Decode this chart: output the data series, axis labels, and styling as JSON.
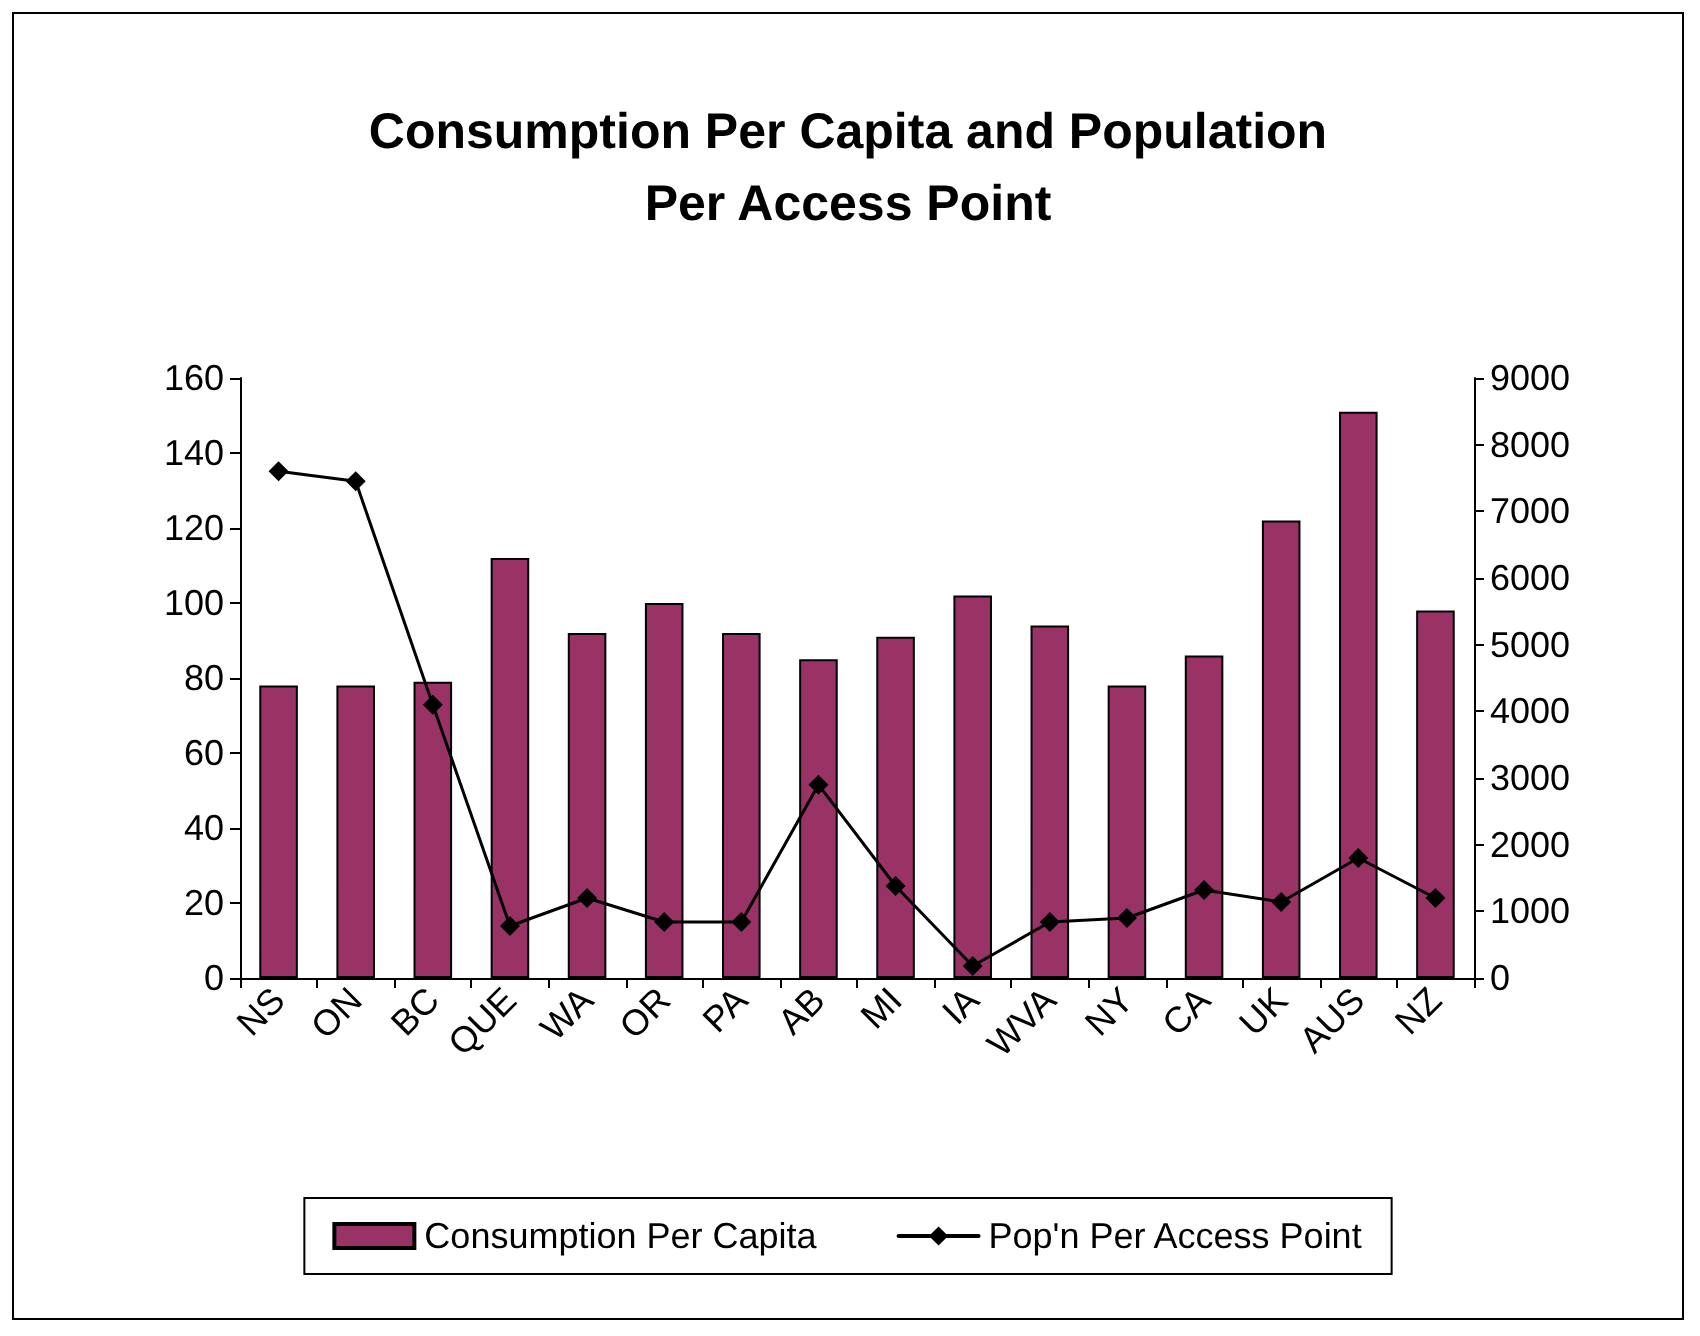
{
  "chart_data": {
    "type": "bar",
    "title": "Consumption Per Capita and Population\nPer Access Point",
    "categories": [
      "NS",
      "ON",
      "BC",
      "QUE",
      "WA",
      "OR",
      "PA",
      "AB",
      "MI",
      "IA",
      "WVA",
      "NY",
      "CA",
      "UK",
      "AUS",
      "NZ"
    ],
    "series": [
      {
        "name": "Consumption Per Capita",
        "color": "#993366",
        "values": [
          78,
          78,
          79,
          112,
          92,
          100,
          92,
          85,
          91,
          102,
          94,
          78,
          86,
          122,
          151,
          98
        ]
      },
      {
        "name": "Pop'n Per Access Point",
        "type": "line",
        "axis": "y2",
        "color": "#000000",
        "values": [
          7600,
          7450,
          4100,
          780,
          1200,
          840,
          840,
          2900,
          1380,
          180,
          840,
          900,
          1320,
          1140,
          1800,
          1200
        ]
      }
    ],
    "ylim": [
      0,
      160
    ],
    "yticks": [
      0,
      20,
      40,
      60,
      80,
      100,
      120,
      140,
      160
    ],
    "y2lim": [
      0,
      9000
    ],
    "y2ticks": [
      0,
      1000,
      2000,
      3000,
      4000,
      5000,
      6000,
      7000,
      8000,
      9000
    ],
    "grid": false,
    "legend": "bottom",
    "marker": "diamond",
    "line_style": "solid"
  }
}
